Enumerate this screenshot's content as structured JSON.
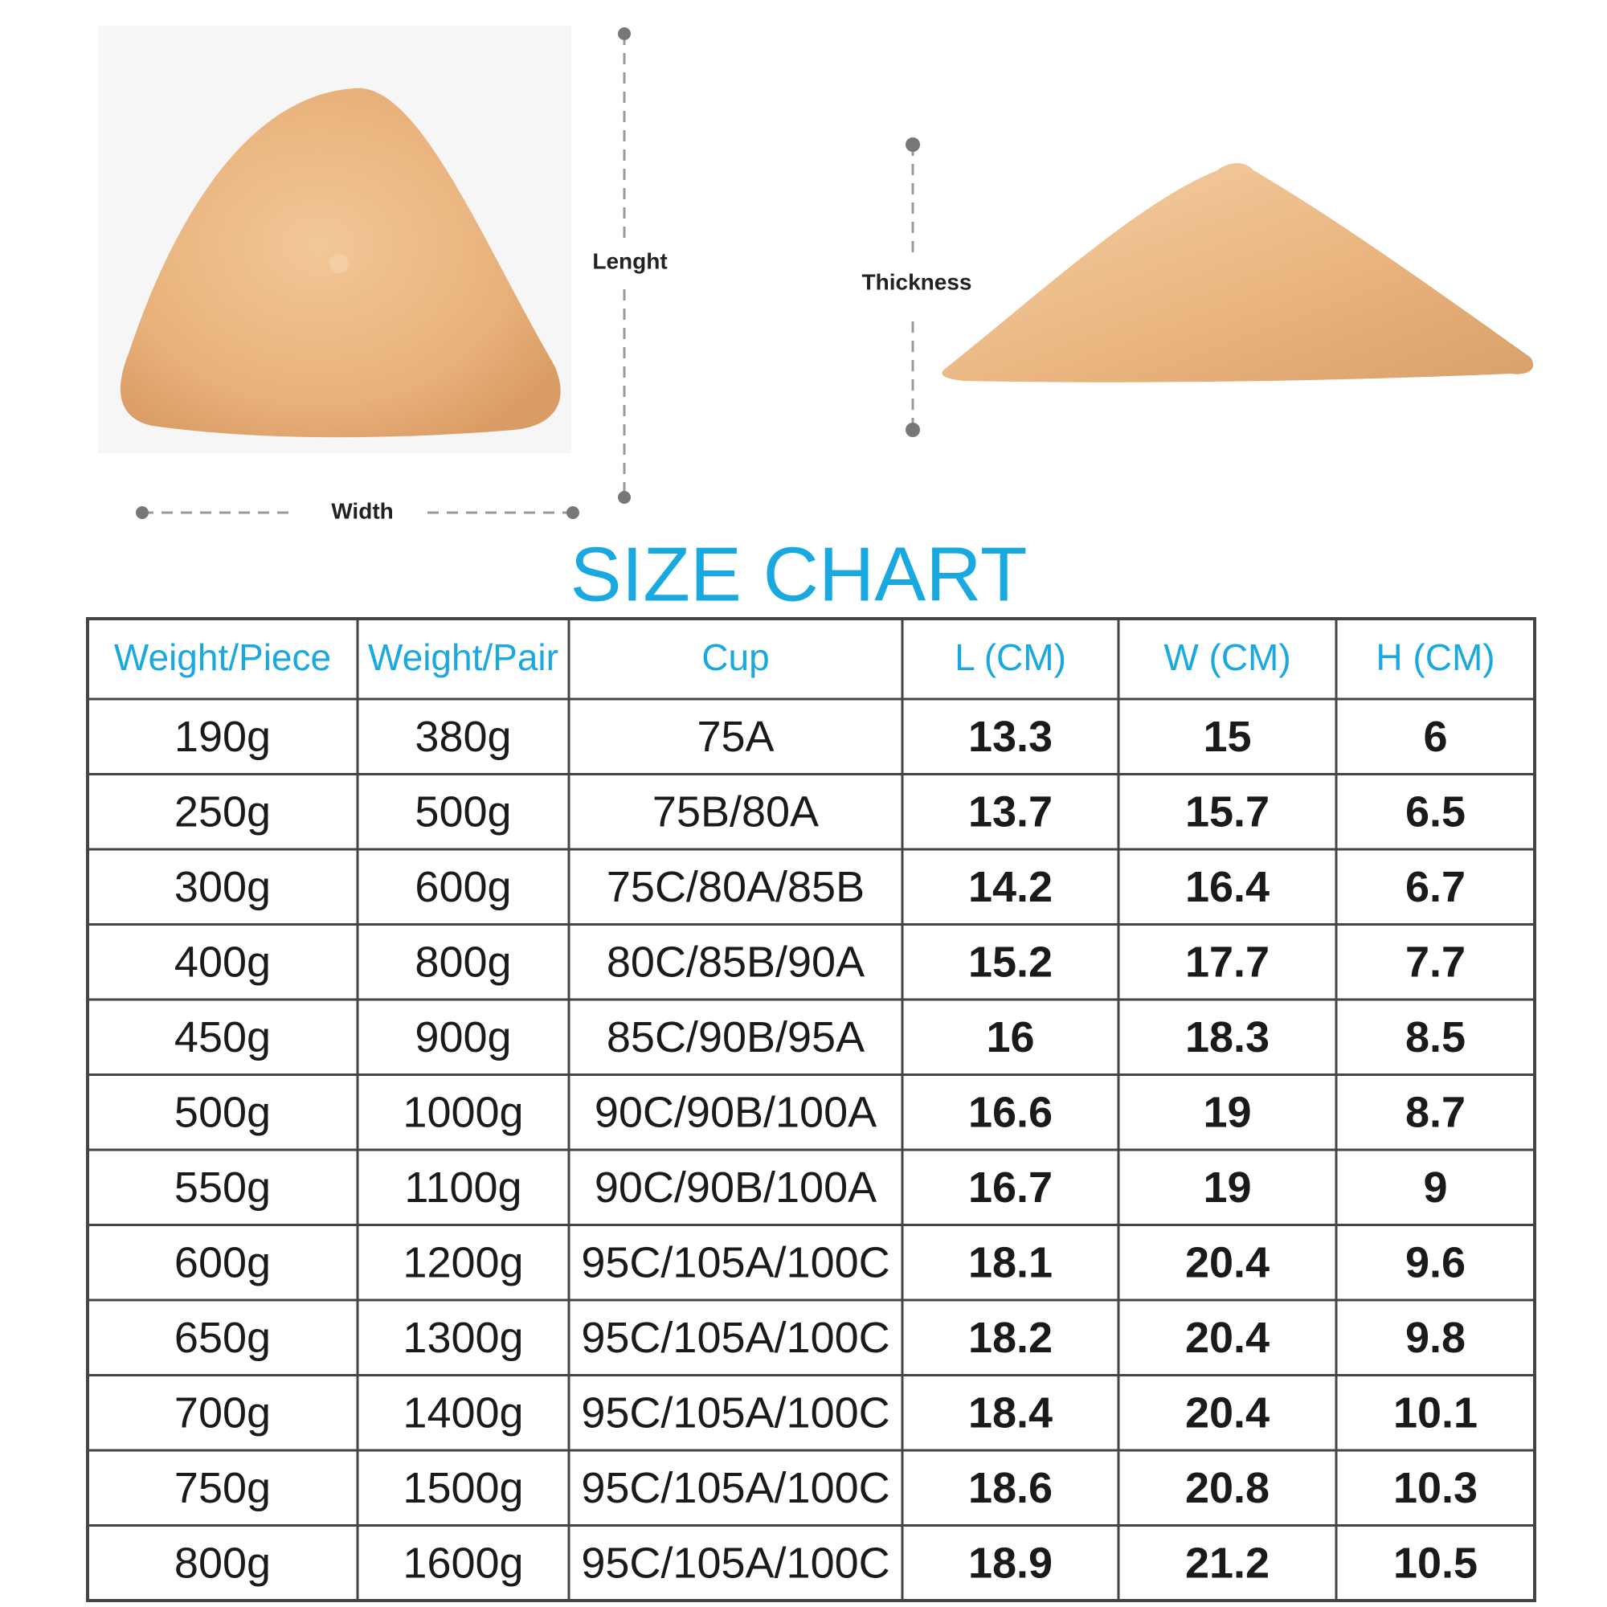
{
  "labels": {
    "length": "Lenght",
    "thickness": "Thickness",
    "width": "Width"
  },
  "title": "SIZE CHART",
  "table": {
    "header": [
      "Weight/Piece",
      "Weight/Pair",
      "Cup",
      "L (CM)",
      "W (CM)",
      "H (CM)"
    ],
    "rows": [
      [
        "190g",
        "380g",
        "75A",
        13.3,
        15,
        6
      ],
      [
        "250g",
        "500g",
        "75B/80A",
        13.7,
        15.7,
        6.5
      ],
      [
        "300g",
        "600g",
        "75C/80A/85B",
        14.2,
        16.4,
        6.7
      ],
      [
        "400g",
        "800g",
        "80C/85B/90A",
        15.2,
        17.7,
        7.7
      ],
      [
        "450g",
        "900g",
        "85C/90B/95A",
        16,
        18.3,
        8.5
      ],
      [
        "500g",
        "1000g",
        "90C/90B/100A",
        16.6,
        19,
        8.7
      ],
      [
        "550g",
        "1100g",
        "90C/90B/100A",
        16.7,
        19,
        9
      ],
      [
        "600g",
        "1200g",
        "95C/105A/100C",
        18.1,
        20.4,
        9.6
      ],
      [
        "650g",
        "1300g",
        "95C/105A/100C",
        18.2,
        20.4,
        9.8
      ],
      [
        "700g",
        "1400g",
        "95C/105A/100C",
        18.4,
        20.4,
        10.1
      ],
      [
        "750g",
        "1500g",
        "95C/105A/100C",
        18.6,
        20.8,
        10.3
      ],
      [
        "800g",
        "1600g",
        "95C/105A/100C",
        18.9,
        21.2,
        10.5
      ]
    ]
  }
}
